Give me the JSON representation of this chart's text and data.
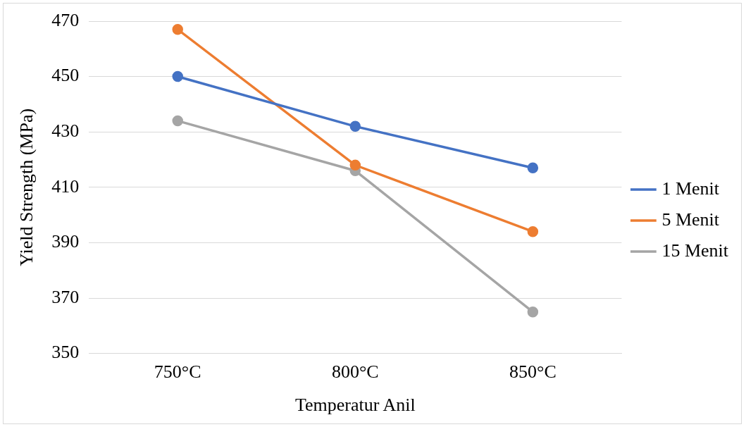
{
  "chart_data": {
    "type": "line",
    "xlabel": "Temperatur Anil",
    "ylabel": "Yield Strength (MPa)",
    "categories": [
      "750°C",
      "800°C",
      "850°C"
    ],
    "series": [
      {
        "name": "1 Menit",
        "color": "#4472c4",
        "values": [
          450,
          432,
          417
        ]
      },
      {
        "name": "5 Menit",
        "color": "#ed7d31",
        "values": [
          467,
          418,
          394
        ]
      },
      {
        "name": "15 Menit",
        "color": "#a5a5a5",
        "values": [
          434,
          416,
          365
        ]
      }
    ],
    "ylim": [
      350,
      470
    ],
    "yticks": [
      350,
      370,
      390,
      410,
      430,
      450,
      470
    ],
    "grid": "y",
    "legend": "right",
    "marker": "circle",
    "line_style": "solid"
  }
}
